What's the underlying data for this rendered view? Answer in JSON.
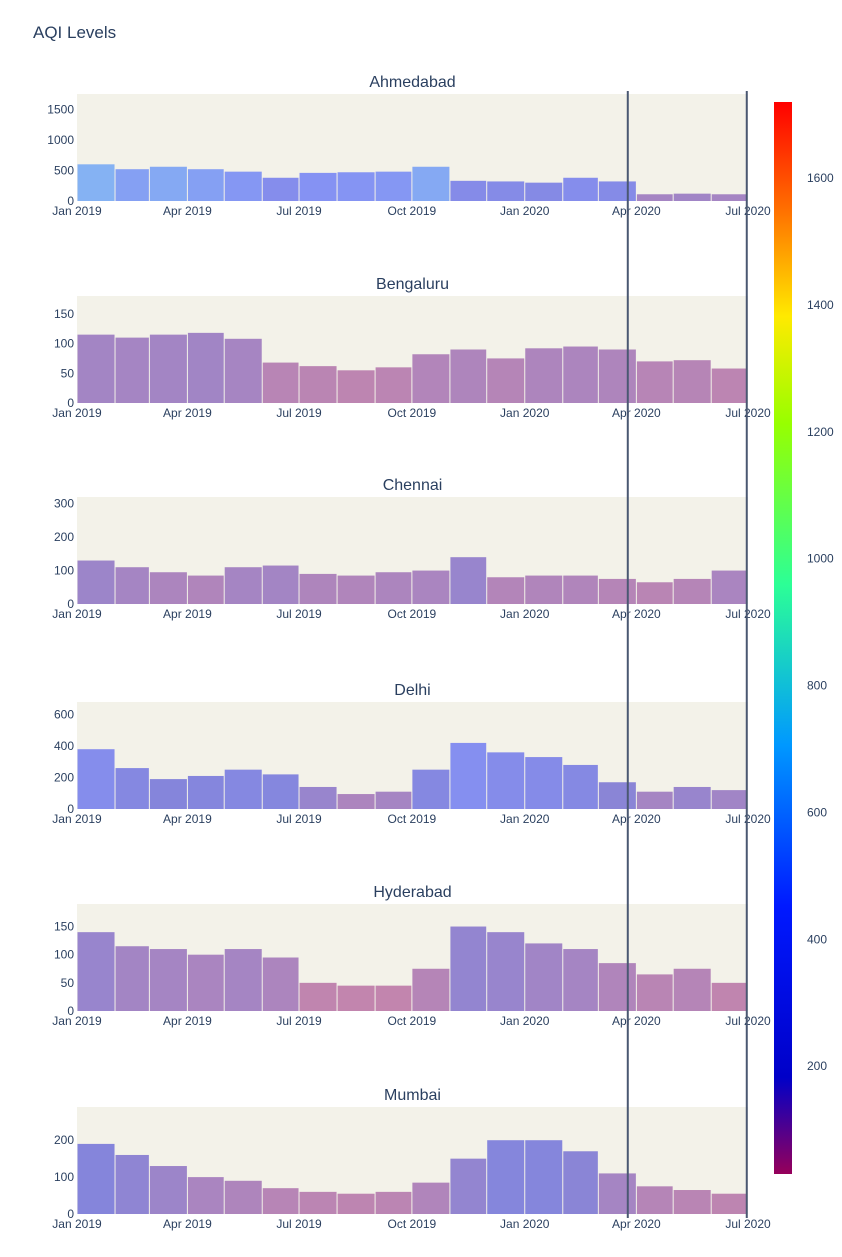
{
  "title": "AQI Levels",
  "x_tick_labels": [
    "Jan 2019",
    "Apr 2019",
    "Jul 2019",
    "Oct 2019",
    "Jan 2020",
    "Apr 2020",
    "Jul 2020"
  ],
  "colorbar": {
    "range": [
      30,
      1720
    ],
    "ticks": [
      200,
      400,
      600,
      800,
      1000,
      1200,
      1400,
      1600
    ],
    "colorscale": "rainbow"
  },
  "chart_data": {
    "type": "bar",
    "x_start": "2019-01-01",
    "x_end": "2020-07-01",
    "vertical_lines": [
      "2020-03-25",
      "2020-06-30"
    ],
    "grid": false,
    "legend": "colorbar-right",
    "subplots": [
      {
        "name": "Ahmedabad",
        "yticks": [
          0,
          500,
          1000,
          1500
        ],
        "ylim": [
          0,
          1750
        ],
        "values_monthly": [
          {
            "month": "2019-01",
            "value": 600
          },
          {
            "month": "2019-02",
            "value": 520
          },
          {
            "month": "2019-03",
            "value": 560
          },
          {
            "month": "2019-04",
            "value": 520
          },
          {
            "month": "2019-05",
            "value": 480
          },
          {
            "month": "2019-06",
            "value": 380
          },
          {
            "month": "2019-07",
            "value": 460
          },
          {
            "month": "2019-08",
            "value": 470
          },
          {
            "month": "2019-09",
            "value": 480
          },
          {
            "month": "2019-10",
            "value": 560
          },
          {
            "month": "2019-11",
            "value": 330
          },
          {
            "month": "2019-12",
            "value": 320
          },
          {
            "month": "2020-01",
            "value": 300
          },
          {
            "month": "2020-02",
            "value": 380
          },
          {
            "month": "2020-03",
            "value": 320
          },
          {
            "month": "2020-04",
            "value": 110
          },
          {
            "month": "2020-05",
            "value": 120
          },
          {
            "month": "2020-06",
            "value": 110
          }
        ]
      },
      {
        "name": "Bengaluru",
        "yticks": [
          0,
          50,
          100,
          150
        ],
        "ylim": [
          0,
          180
        ],
        "values_monthly": [
          {
            "month": "2019-01",
            "value": 115
          },
          {
            "month": "2019-02",
            "value": 110
          },
          {
            "month": "2019-03",
            "value": 115
          },
          {
            "month": "2019-04",
            "value": 118
          },
          {
            "month": "2019-05",
            "value": 108
          },
          {
            "month": "2019-06",
            "value": 68
          },
          {
            "month": "2019-07",
            "value": 62
          },
          {
            "month": "2019-08",
            "value": 55
          },
          {
            "month": "2019-09",
            "value": 60
          },
          {
            "month": "2019-10",
            "value": 82
          },
          {
            "month": "2019-11",
            "value": 90
          },
          {
            "month": "2019-12",
            "value": 75
          },
          {
            "month": "2020-01",
            "value": 92
          },
          {
            "month": "2020-02",
            "value": 95
          },
          {
            "month": "2020-03",
            "value": 90
          },
          {
            "month": "2020-04",
            "value": 70
          },
          {
            "month": "2020-05",
            "value": 72
          },
          {
            "month": "2020-06",
            "value": 58
          }
        ]
      },
      {
        "name": "Chennai",
        "yticks": [
          0,
          100,
          200,
          300
        ],
        "ylim": [
          0,
          320
        ],
        "values_monthly": [
          {
            "month": "2019-01",
            "value": 130
          },
          {
            "month": "2019-02",
            "value": 110
          },
          {
            "month": "2019-03",
            "value": 95
          },
          {
            "month": "2019-04",
            "value": 85
          },
          {
            "month": "2019-05",
            "value": 110
          },
          {
            "month": "2019-06",
            "value": 115
          },
          {
            "month": "2019-07",
            "value": 90
          },
          {
            "month": "2019-08",
            "value": 85
          },
          {
            "month": "2019-09",
            "value": 95
          },
          {
            "month": "2019-10",
            "value": 100
          },
          {
            "month": "2019-11",
            "value": 140
          },
          {
            "month": "2019-12",
            "value": 80
          },
          {
            "month": "2020-01",
            "value": 85
          },
          {
            "month": "2020-02",
            "value": 85
          },
          {
            "month": "2020-03",
            "value": 75
          },
          {
            "month": "2020-04",
            "value": 65
          },
          {
            "month": "2020-05",
            "value": 75
          },
          {
            "month": "2020-06",
            "value": 100
          }
        ]
      },
      {
        "name": "Delhi",
        "yticks": [
          0,
          200,
          400,
          600
        ],
        "ylim": [
          0,
          680
        ],
        "values_monthly": [
          {
            "month": "2019-01",
            "value": 380
          },
          {
            "month": "2019-02",
            "value": 260
          },
          {
            "month": "2019-03",
            "value": 190
          },
          {
            "month": "2019-04",
            "value": 210
          },
          {
            "month": "2019-05",
            "value": 250
          },
          {
            "month": "2019-06",
            "value": 220
          },
          {
            "month": "2019-07",
            "value": 140
          },
          {
            "month": "2019-08",
            "value": 95
          },
          {
            "month": "2019-09",
            "value": 110
          },
          {
            "month": "2019-10",
            "value": 250
          },
          {
            "month": "2019-11",
            "value": 420
          },
          {
            "month": "2019-12",
            "value": 360
          },
          {
            "month": "2020-01",
            "value": 330
          },
          {
            "month": "2020-02",
            "value": 280
          },
          {
            "month": "2020-03",
            "value": 170
          },
          {
            "month": "2020-04",
            "value": 110
          },
          {
            "month": "2020-05",
            "value": 140
          },
          {
            "month": "2020-06",
            "value": 120
          }
        ]
      },
      {
        "name": "Hyderabad",
        "yticks": [
          0,
          50,
          100,
          150
        ],
        "ylim": [
          0,
          190
        ],
        "values_monthly": [
          {
            "month": "2019-01",
            "value": 140
          },
          {
            "month": "2019-02",
            "value": 115
          },
          {
            "month": "2019-03",
            "value": 110
          },
          {
            "month": "2019-04",
            "value": 100
          },
          {
            "month": "2019-05",
            "value": 110
          },
          {
            "month": "2019-06",
            "value": 95
          },
          {
            "month": "2019-07",
            "value": 50
          },
          {
            "month": "2019-08",
            "value": 45
          },
          {
            "month": "2019-09",
            "value": 45
          },
          {
            "month": "2019-10",
            "value": 75
          },
          {
            "month": "2019-11",
            "value": 150
          },
          {
            "month": "2019-12",
            "value": 140
          },
          {
            "month": "2020-01",
            "value": 120
          },
          {
            "month": "2020-02",
            "value": 110
          },
          {
            "month": "2020-03",
            "value": 85
          },
          {
            "month": "2020-04",
            "value": 65
          },
          {
            "month": "2020-05",
            "value": 75
          },
          {
            "month": "2020-06",
            "value": 50
          }
        ]
      },
      {
        "name": "Mumbai",
        "yticks": [
          0,
          100,
          200
        ],
        "ylim": [
          0,
          290
        ],
        "values_monthly": [
          {
            "month": "2019-01",
            "value": 190
          },
          {
            "month": "2019-02",
            "value": 160
          },
          {
            "month": "2019-03",
            "value": 130
          },
          {
            "month": "2019-04",
            "value": 100
          },
          {
            "month": "2019-05",
            "value": 90
          },
          {
            "month": "2019-06",
            "value": 70
          },
          {
            "month": "2019-07",
            "value": 60
          },
          {
            "month": "2019-08",
            "value": 55
          },
          {
            "month": "2019-09",
            "value": 60
          },
          {
            "month": "2019-10",
            "value": 85
          },
          {
            "month": "2019-11",
            "value": 150
          },
          {
            "month": "2019-12",
            "value": 200
          },
          {
            "month": "2020-01",
            "value": 200
          },
          {
            "month": "2020-02",
            "value": 170
          },
          {
            "month": "2020-03",
            "value": 110
          },
          {
            "month": "2020-04",
            "value": 75
          },
          {
            "month": "2020-05",
            "value": 65
          },
          {
            "month": "2020-06",
            "value": 55
          }
        ]
      }
    ]
  }
}
